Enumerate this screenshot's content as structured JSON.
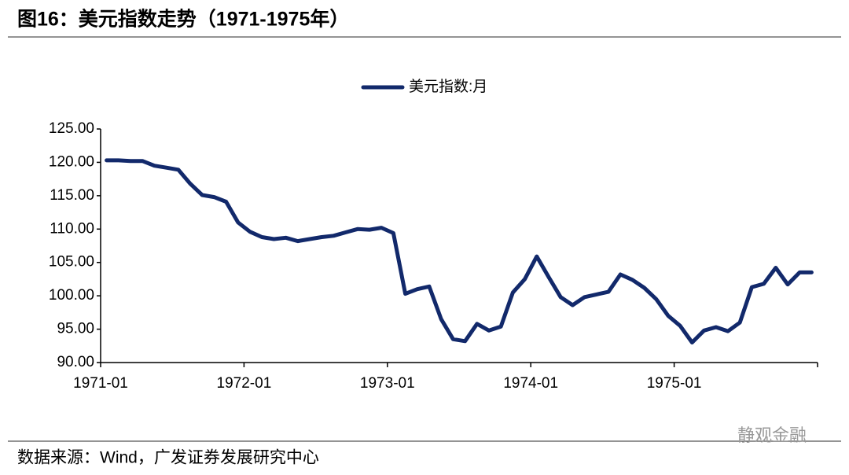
{
  "header": {
    "title": "图16：美元指数走势（1971-1975年）"
  },
  "chart_data": {
    "type": "line",
    "categories": [
      "1971-01",
      null,
      null,
      null,
      null,
      null,
      null,
      null,
      null,
      null,
      null,
      null,
      "1972-01",
      null,
      null,
      null,
      null,
      null,
      null,
      null,
      null,
      null,
      null,
      null,
      "1973-01",
      null,
      null,
      null,
      null,
      null,
      null,
      null,
      null,
      null,
      null,
      null,
      "1974-01",
      null,
      null,
      null,
      null,
      null,
      null,
      null,
      null,
      null,
      null,
      null,
      "1975-01",
      null,
      null,
      null,
      null,
      null,
      null,
      null,
      null,
      null,
      null,
      null
    ],
    "series": [
      {
        "name": "美元指数:月",
        "color": "#12296b",
        "values": [
          120.3,
          120.3,
          120.2,
          120.2,
          119.5,
          119.2,
          118.9,
          116.8,
          115.1,
          114.8,
          114.1,
          111.0,
          109.6,
          108.8,
          108.5,
          108.7,
          108.2,
          108.5,
          108.8,
          109.0,
          109.5,
          110.0,
          109.9,
          110.2,
          109.4,
          100.3,
          101.0,
          101.4,
          96.5,
          93.5,
          93.2,
          95.8,
          94.8,
          95.4,
          100.5,
          102.5,
          105.9,
          102.8,
          99.8,
          98.6,
          99.8,
          100.2,
          100.6,
          103.2,
          102.4,
          101.2,
          99.5,
          97.0,
          95.5,
          93.0,
          94.8,
          95.3,
          94.7,
          96.0,
          101.3,
          101.8,
          104.2,
          101.7,
          103.5,
          103.5
        ]
      }
    ],
    "ylim": [
      90,
      125
    ],
    "yticks": [
      {
        "value": 90,
        "label": "90.00"
      },
      {
        "value": 95,
        "label": "95.00"
      },
      {
        "value": 100,
        "label": "100.00"
      },
      {
        "value": 105,
        "label": "105.00"
      },
      {
        "value": 110,
        "label": "110.00"
      },
      {
        "value": 115,
        "label": "115.00"
      },
      {
        "value": 120,
        "label": "120.00"
      },
      {
        "value": 125,
        "label": "125.00"
      }
    ],
    "grid": false,
    "legend": "top"
  },
  "footer": {
    "source": "数据来源：Wind，广发证券发展研究中心",
    "watermark": "静观金融"
  }
}
